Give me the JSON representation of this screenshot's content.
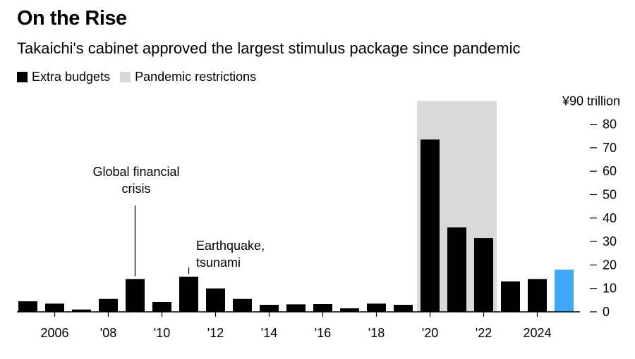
{
  "colors": {
    "bar": "#000000",
    "highlight": "#3fa9f5",
    "pandemic": "#d9d9d9",
    "axis": "#000000"
  },
  "chart_data": {
    "type": "bar",
    "title": "On the Rise",
    "subtitle": "Takaichi's cabinet approved the largest stimulus package since pandemic",
    "legend": [
      {
        "label": "Extra budgets",
        "color": "#000000"
      },
      {
        "label": "Pandemic restrictions",
        "color": "#d9d9d9"
      }
    ],
    "unit_label": "¥90 trillion",
    "categories": [
      "2005",
      "2006",
      "2007",
      "2008",
      "2009",
      "2010",
      "2011",
      "2012",
      "2013",
      "2014",
      "2015",
      "2016",
      "2017",
      "2018",
      "2019",
      "2020",
      "2021",
      "2022",
      "2023",
      "2024",
      "2025"
    ],
    "values": [
      4.5,
      3.5,
      1,
      5.5,
      14,
      4.2,
      15,
      10,
      5.5,
      3,
      3.2,
      3.3,
      1.5,
      3.5,
      3,
      73.5,
      36,
      31.5,
      13,
      14,
      18
    ],
    "highlight_index": 20,
    "pandemic_span": [
      "2020",
      "2022"
    ],
    "pandemic_top": 90,
    "ylim": [
      0,
      90
    ],
    "yticks": [
      0,
      10,
      20,
      30,
      40,
      50,
      60,
      70,
      80
    ],
    "ytick_labels": [
      "0",
      "10",
      "20",
      "30",
      "40",
      "50",
      "60",
      "70",
      "80"
    ],
    "xtick_labels": [
      {
        "year": "2006",
        "label": "2006"
      },
      {
        "year": "2008",
        "label": "'08"
      },
      {
        "year": "2010",
        "label": "'10"
      },
      {
        "year": "2012",
        "label": "'12"
      },
      {
        "year": "2014",
        "label": "'14"
      },
      {
        "year": "2016",
        "label": "'16"
      },
      {
        "year": "2018",
        "label": "'18"
      },
      {
        "year": "2020",
        "label": "'20"
      },
      {
        "year": "2022",
        "label": "'22"
      },
      {
        "year": "2024",
        "label": "2024"
      }
    ],
    "annotations": [
      {
        "year": "2009",
        "lines": [
          "Global financial",
          "crisis"
        ],
        "value": 14
      },
      {
        "year": "2011",
        "lines": [
          "Earthquake,",
          "tsunami"
        ],
        "value": 15
      }
    ]
  }
}
